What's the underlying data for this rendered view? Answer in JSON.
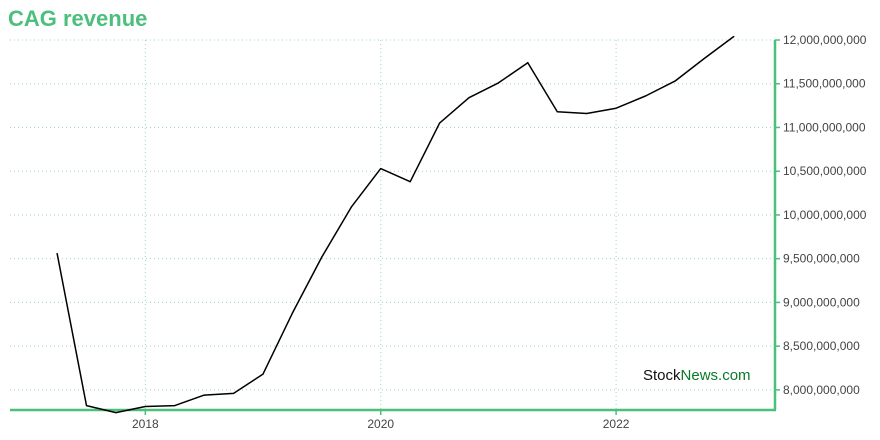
{
  "chart_data": {
    "type": "line",
    "title": "CAG revenue",
    "xlabel": "",
    "ylabel": "",
    "x_tick_labels": [
      "2018",
      "2020",
      "2022"
    ],
    "x_ticks": [
      2018,
      2020,
      2022
    ],
    "xlim": [
      2016.85,
      2023.35
    ],
    "y_tick_labels": [
      "8,000,000,000",
      "8,500,000,000",
      "9,000,000,000",
      "9,500,000,000",
      "10,000,000,000",
      "10,500,000,000",
      "11,000,000,000",
      "11,500,000,000",
      "12,000,000,000"
    ],
    "y_ticks": [
      8000000000,
      8500000000,
      9000000000,
      9500000000,
      10000000000,
      10500000000,
      11000000000,
      11500000000,
      12000000000
    ],
    "ylim": [
      7770000000,
      12000000000
    ],
    "grid": true,
    "axis_side": "right",
    "series": [
      {
        "color": "#000000",
        "x": [
          2017.25,
          2017.5,
          2017.75,
          2018.0,
          2018.25,
          2018.5,
          2018.75,
          2019.0,
          2019.25,
          2019.5,
          2019.75,
          2020.0,
          2020.25,
          2020.5,
          2020.75,
          2021.0,
          2021.25,
          2021.5,
          2021.75,
          2022.0,
          2022.25,
          2022.5,
          2022.75,
          2023.0
        ],
        "values": [
          9560000000,
          7820000000,
          7740000000,
          7810000000,
          7820000000,
          7940000000,
          7960000000,
          8180000000,
          8880000000,
          9520000000,
          10090000000,
          10530000000,
          10380000000,
          11050000000,
          11340000000,
          11510000000,
          11740000000,
          11180000000,
          11160000000,
          11220000000,
          11360000000,
          11530000000,
          11790000000,
          12040000000
        ]
      }
    ]
  },
  "watermark": {
    "part1": "Stock",
    "part2": "News.com"
  },
  "colors": {
    "accent": "#4cbf7c",
    "grid": "#9fd8b8",
    "line": "#000000"
  }
}
